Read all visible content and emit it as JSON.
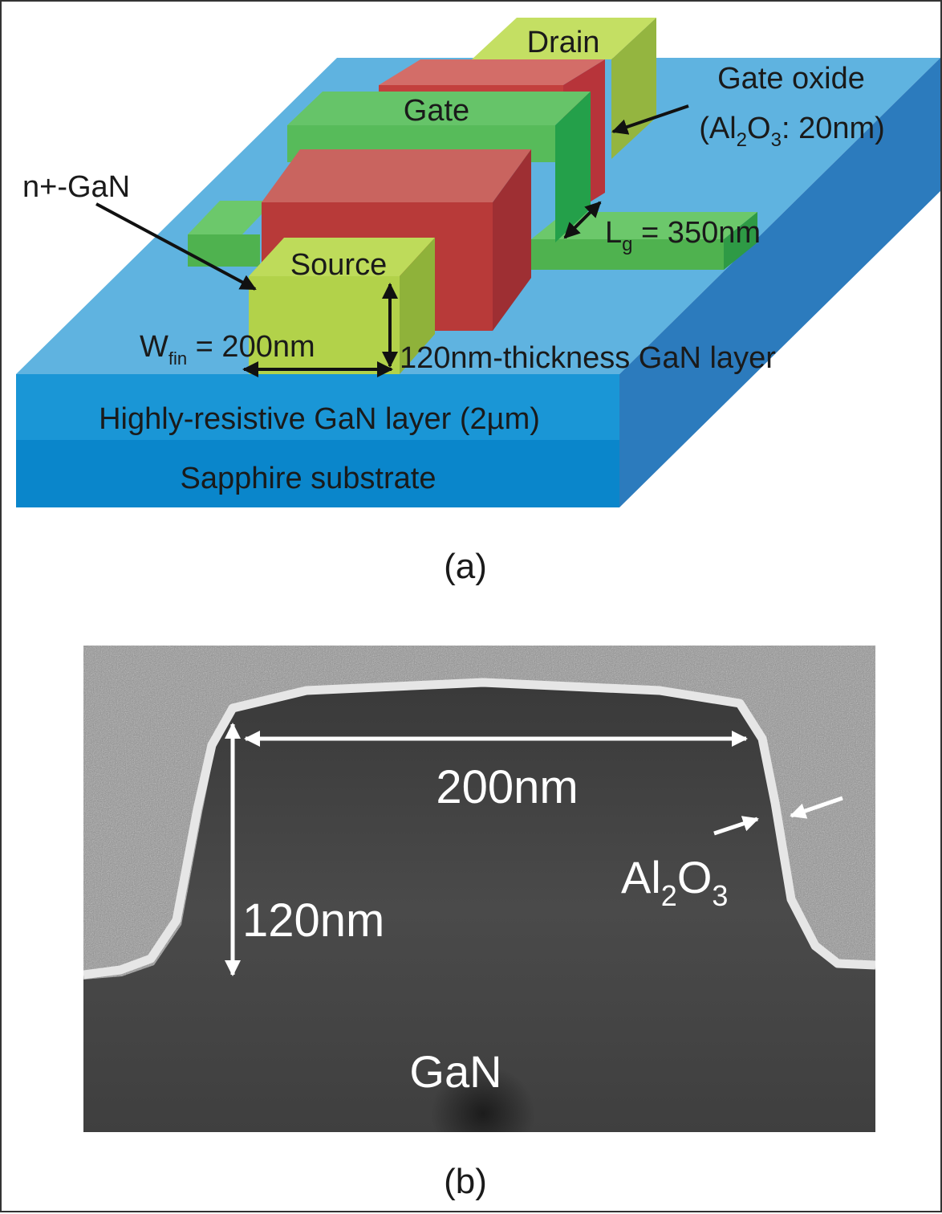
{
  "panel_a": {
    "drain": "Drain",
    "gate": "Gate",
    "source": "Source",
    "gate_oxide_line1": "Gate oxide",
    "gate_oxide_line2_pre": "(Al",
    "gate_oxide_sub2": "2",
    "gate_oxide_mid": "O",
    "gate_oxide_sub3": "3",
    "gate_oxide_post": ": 20nm)",
    "n_gan": "n+-GaN",
    "lg_main": "L",
    "lg_sub": "g",
    "lg_value": " = 350nm",
    "wfin_main": "W",
    "wfin_sub": "fin",
    "wfin_value": " = 200nm",
    "thickness": "120nm-thickness GaN layer",
    "highly_resistive": "Highly-resistive GaN layer (2µm)",
    "sapphire": "Sapphire substrate",
    "caption": "(a)",
    "colors": {
      "substrate_top": "#5fb3e0",
      "substrate_front": "#0b87cc",
      "substrate_side": "#2a6fb0",
      "gate": "#5cbf5f",
      "oxide": "#c3403d",
      "source_drain": "#b2d24a"
    }
  },
  "panel_b": {
    "width_label": "200nm",
    "height_label": "120nm",
    "oxide_main": "Al",
    "oxide_sub2": "2",
    "oxide_mid": "O",
    "oxide_sub3": "3",
    "material": "GaN",
    "caption": "(b)"
  }
}
